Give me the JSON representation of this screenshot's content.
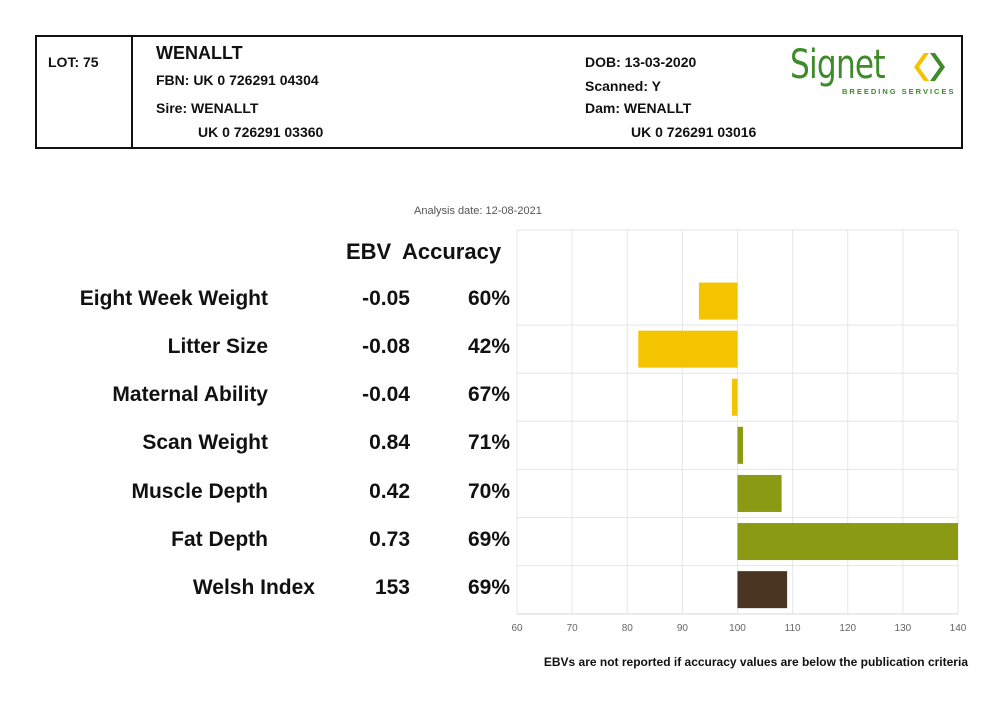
{
  "header": {
    "lot": "LOT: 75",
    "name": "WENALLT",
    "fbn": "FBN: UK 0 726291 04304",
    "sire": "Sire: WENALLT",
    "sire_id": "UK 0 726291 03360",
    "dob": "DOB: 13-03-2020",
    "scanned": "Scanned: Y",
    "dam": "Dam: WENALLT",
    "dam_id": "UK 0 726291 03016"
  },
  "logo": {
    "word": "Signet",
    "subtitle": "BREEDING SERVICES",
    "color": "#3f8a2a",
    "icon": "signet-chevrons-icon"
  },
  "analysis_date": "Analysis date: 12-08-2021",
  "columns": {
    "ebv": "EBV",
    "accuracy": "Accuracy"
  },
  "rows": [
    {
      "label": "Eight Week Weight",
      "ebv": "-0.05",
      "accuracy": "60%"
    },
    {
      "label": "Litter Size",
      "ebv": "-0.08",
      "accuracy": "42%"
    },
    {
      "label": "Maternal Ability",
      "ebv": "-0.04",
      "accuracy": "67%"
    },
    {
      "label": "Scan Weight",
      "ebv": "0.84",
      "accuracy": "71%"
    },
    {
      "label": "Muscle Depth",
      "ebv": "0.42",
      "accuracy": "70%"
    },
    {
      "label": "Fat Depth",
      "ebv": "0.73",
      "accuracy": "69%"
    },
    {
      "label": "Welsh Index",
      "ebv": "153",
      "accuracy": "69%"
    }
  ],
  "chart_data": {
    "type": "bar",
    "orientation": "horizontal",
    "baseline": 100,
    "xlim": [
      60,
      140
    ],
    "xticks": [
      "60",
      "70",
      "80",
      "90",
      "100",
      "110",
      "120",
      "130",
      "140"
    ],
    "categories": [
      "Eight Week Weight",
      "Litter Size",
      "Maternal Ability",
      "Scan Weight",
      "Muscle Depth",
      "Fat Depth",
      "Welsh Index"
    ],
    "values": [
      93,
      82,
      99,
      101,
      108,
      140,
      109
    ],
    "colors": [
      "#f5c400",
      "#f5c400",
      "#f5c400",
      "#8a9a12",
      "#8a9a12",
      "#8a9a12",
      "#4a3422"
    ],
    "grid": true
  },
  "note": "EBVs are not reported if accuracy values are below the publication criteria"
}
